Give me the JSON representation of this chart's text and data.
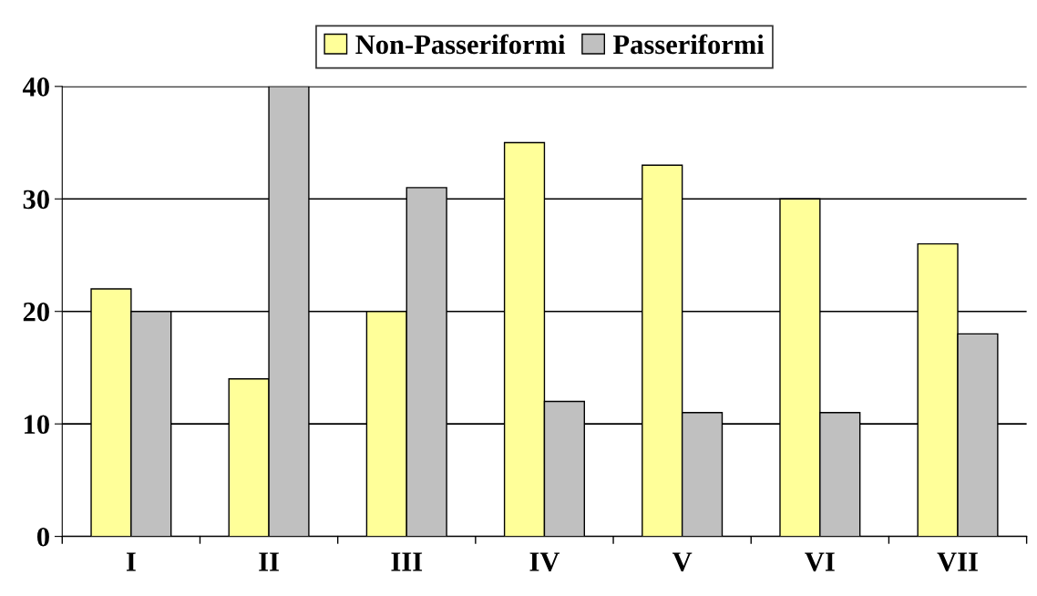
{
  "chart_data": {
    "type": "bar",
    "categories": [
      "I",
      "II",
      "III",
      "IV",
      "V",
      "VI",
      "VII"
    ],
    "series": [
      {
        "name": "Non-Passeriformi",
        "color": "#ffff99",
        "values": [
          22,
          14,
          20,
          35,
          33,
          30,
          26
        ]
      },
      {
        "name": "Passeriformi",
        "color": "#c0c0c0",
        "values": [
          20,
          40,
          31,
          12,
          11,
          11,
          18
        ]
      }
    ],
    "ylim": [
      0,
      40
    ],
    "yticks": [
      0,
      10,
      20,
      30,
      40
    ],
    "grid": "y",
    "legend": "top"
  }
}
